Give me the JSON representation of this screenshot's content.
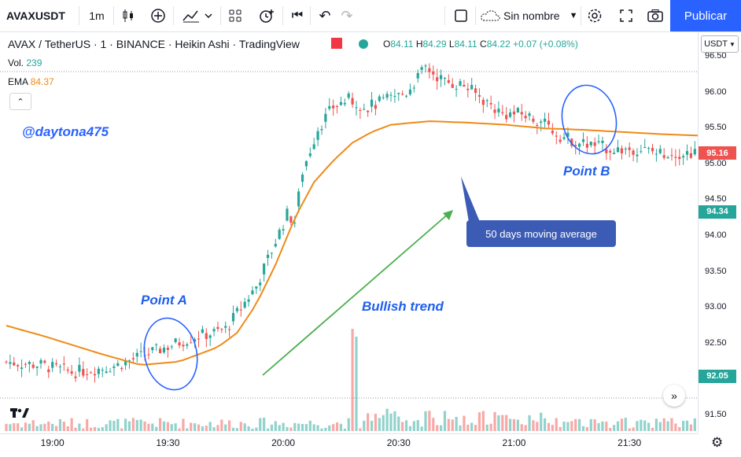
{
  "toolbar": {
    "symbol": "AVAXUSDT",
    "interval": "1m",
    "chart_name": "Sin nombre",
    "publish": "Publicar",
    "colors": {
      "accent": "#2962ff"
    }
  },
  "legend": {
    "title": "AVAX / TetherUS · 1 · BINANCE · Heikin Ashi · TradingView",
    "ohlc": {
      "o_label": "O",
      "o": "84.11",
      "h_label": "H",
      "h": "84.29",
      "l_label": "L",
      "l": "84.11",
      "c_label": "C",
      "c": "84.22",
      "change": "+0.07 (+0.08%)"
    },
    "vol_label": "Vol.",
    "vol_value": "239",
    "ema_label": "EMA",
    "ema_value": "84.37"
  },
  "watermark": "@daytona475",
  "annotations": {
    "point_a": "Point A",
    "point_b": "Point B",
    "trend": "Bullish trend",
    "callout": "50 days moving average"
  },
  "price_axis": {
    "currency": "USDT",
    "ticks": [
      "96.50",
      "96.00",
      "95.50",
      "95.00",
      "94.50",
      "94.00",
      "93.50",
      "93.00",
      "92.50",
      "92.00",
      "91.50"
    ],
    "last_price": "95.16",
    "badge_mid": "94.34",
    "badge_low": "92.05",
    "colors": {
      "down": "#ef5350",
      "up": "#26a69a",
      "ema": "#ef8a17"
    }
  },
  "time_axis": {
    "ticks": [
      "19:00",
      "19:30",
      "20:00",
      "20:30",
      "21:00",
      "21:30"
    ]
  },
  "chart_data": {
    "type": "candlestick",
    "title": "AVAX / TetherUS · 1 · BINANCE · Heikin Ashi · TradingView",
    "ylim": [
      91.3,
      96.65
    ],
    "y_ticks": [
      91.5,
      92.0,
      92.5,
      93.0,
      93.5,
      94.0,
      94.5,
      95.0,
      95.5,
      96.0,
      96.5
    ],
    "x_range": [
      "18:48",
      "21:48"
    ],
    "x_ticks": [
      "19:00",
      "19:30",
      "20:00",
      "20:30",
      "21:00",
      "21:30"
    ],
    "price_path": [
      [
        0,
        92.25
      ],
      [
        10,
        92.2
      ],
      [
        18,
        92.1
      ],
      [
        25,
        92.15
      ],
      [
        30,
        92.2
      ],
      [
        35,
        92.3
      ],
      [
        40,
        92.4
      ],
      [
        45,
        92.5
      ],
      [
        50,
        92.6
      ],
      [
        55,
        92.65
      ],
      [
        58,
        92.7
      ],
      [
        62,
        93.0
      ],
      [
        66,
        93.3
      ],
      [
        70,
        93.8
      ],
      [
        74,
        94.3
      ],
      [
        76,
        94.2
      ],
      [
        78,
        94.9
      ],
      [
        82,
        95.5
      ],
      [
        86,
        95.8
      ],
      [
        90,
        95.9
      ],
      [
        95,
        95.8
      ],
      [
        100,
        95.9
      ],
      [
        105,
        96.0
      ],
      [
        110,
        96.35
      ],
      [
        115,
        96.15
      ],
      [
        120,
        96.1
      ],
      [
        125,
        95.9
      ],
      [
        130,
        95.7
      ],
      [
        135,
        95.7
      ],
      [
        140,
        95.6
      ],
      [
        145,
        95.4
      ],
      [
        150,
        95.3
      ],
      [
        155,
        95.25
      ],
      [
        160,
        95.2
      ],
      [
        165,
        95.22
      ],
      [
        170,
        95.16
      ],
      [
        180,
        95.16
      ]
    ],
    "ema_path": [
      [
        0,
        92.75
      ],
      [
        10,
        92.6
      ],
      [
        25,
        92.35
      ],
      [
        35,
        92.2
      ],
      [
        45,
        92.25
      ],
      [
        55,
        92.45
      ],
      [
        60,
        92.65
      ],
      [
        65,
        93.05
      ],
      [
        70,
        93.6
      ],
      [
        75,
        94.25
      ],
      [
        80,
        94.75
      ],
      [
        85,
        95.05
      ],
      [
        90,
        95.3
      ],
      [
        95,
        95.45
      ],
      [
        100,
        95.55
      ],
      [
        110,
        95.6
      ],
      [
        120,
        95.58
      ],
      [
        130,
        95.55
      ],
      [
        140,
        95.5
      ],
      [
        150,
        95.48
      ],
      [
        160,
        95.45
      ],
      [
        170,
        95.42
      ],
      [
        180,
        95.4
      ]
    ],
    "series": [
      {
        "name": "EMA",
        "last": 84.37
      },
      {
        "name": "Vol.",
        "last": 239
      }
    ]
  }
}
